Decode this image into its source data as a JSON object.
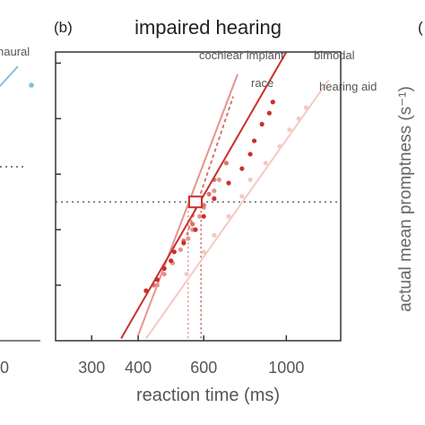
{
  "chart_data": {
    "type": "scatter",
    "panel_label": "(b)",
    "title": "impaired hearing",
    "xlabel": "reaction time (ms)",
    "ylabel": "actual mean promptness (s⁻¹)",
    "x_scale": "log",
    "xlim": [
      240,
      1400
    ],
    "x_ticks": [
      300,
      400,
      600,
      1000
    ],
    "x_tick_labels": [
      "300",
      "400",
      "600",
      "1000"
    ],
    "ylim": [
      0.5,
      3.1
    ],
    "y_tick_values": [
      1.0,
      1.5,
      2.0,
      2.5,
      3.0
    ],
    "grid": false,
    "reference_lines": {
      "y": 1.75,
      "x_marker_lines": [
        545,
        590
      ]
    },
    "legend": "inline-labels",
    "series": [
      {
        "name": "cochlear implant",
        "color": "#e8928c",
        "points": [
          [
            450,
            1.0
          ],
          [
            470,
            1.1
          ],
          [
            495,
            1.2
          ],
          [
            520,
            1.32
          ],
          [
            545,
            1.42
          ],
          [
            560,
            1.5
          ],
          [
            585,
            1.62
          ],
          [
            600,
            1.7
          ],
          [
            640,
            1.85
          ],
          [
            660,
            1.95
          ]
        ],
        "fit": [
          [
            400,
            0.55
          ],
          [
            740,
            2.9
          ]
        ]
      },
      {
        "name": "race",
        "color": "#d4786e",
        "points": [
          [
            440,
            1.0
          ],
          [
            530,
            1.4
          ],
          [
            560,
            1.55
          ],
          [
            600,
            1.72
          ],
          [
            620,
            1.82
          ],
          [
            640,
            1.95
          ],
          [
            690,
            2.1
          ]
        ],
        "fit": [
          [
            540,
            1.45
          ],
          [
            720,
            2.7
          ]
        ]
      },
      {
        "name": "bimodal",
        "color": "#c9302c",
        "points": [
          [
            420,
            0.95
          ],
          [
            450,
            1.05
          ],
          [
            470,
            1.15
          ],
          [
            490,
            1.22
          ],
          [
            500,
            1.3
          ],
          [
            530,
            1.38
          ],
          [
            570,
            1.5
          ],
          [
            600,
            1.62
          ],
          [
            640,
            1.78
          ],
          [
            700,
            1.92
          ],
          [
            760,
            2.05
          ],
          [
            800,
            2.18
          ],
          [
            820,
            2.3
          ],
          [
            860,
            2.45
          ],
          [
            900,
            2.55
          ],
          [
            920,
            2.65
          ]
        ],
        "fit": [
          [
            360,
            0.52
          ],
          [
            1000,
            3.1
          ]
        ]
      },
      {
        "name": "hearing aid",
        "color": "#f4c9c3",
        "points": [
          [
            540,
            1.1
          ],
          [
            600,
            1.3
          ],
          [
            640,
            1.45
          ],
          [
            700,
            1.62
          ],
          [
            760,
            1.8
          ],
          [
            800,
            1.95
          ],
          [
            880,
            2.1
          ],
          [
            960,
            2.25
          ],
          [
            1020,
            2.4
          ],
          [
            1080,
            2.5
          ],
          [
            1130,
            2.6
          ]
        ],
        "fit": [
          [
            420,
            0.52
          ],
          [
            1300,
            2.85
          ]
        ]
      }
    ],
    "crossing_marker": {
      "x": 570,
      "y": 1.75
    }
  },
  "left_panel": {
    "series_label_fragment": "naural",
    "x_tick_fragment": "0",
    "color": "#7ac4d8"
  },
  "right_panel": {
    "label_fragment": "("
  }
}
